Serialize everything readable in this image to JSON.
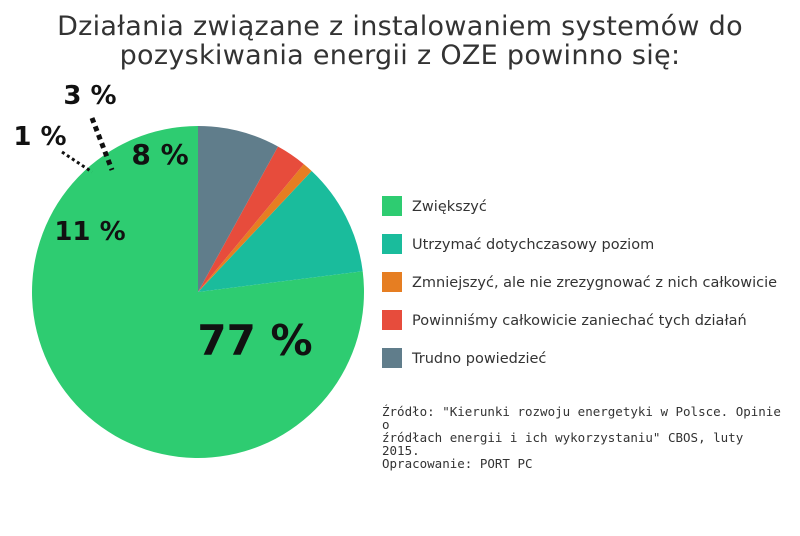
{
  "chart_data": {
    "type": "pie",
    "title": "Działania związane z instalowaniem  systemów do\npozyskiwania energii z OZE  powinno się:",
    "slices": [
      {
        "label": "Zwiększyć",
        "value": 77,
        "display": "77 %",
        "color": "#2ecc71"
      },
      {
        "label": "Utrzymać dotychczasowy poziom",
        "value": 11,
        "display": "11 %",
        "color": "#1abc9c"
      },
      {
        "label": "Zmniejszyć, ale nie zrezygnować z nich całkowicie",
        "value": 1,
        "display": "1 %",
        "color": "#e67e22"
      },
      {
        "label": "Powinniśmy całkowicie zaniechać tych działań",
        "value": 3,
        "display": "3 %",
        "color": "#e74c3c"
      },
      {
        "label": "Trudno powiedzieć",
        "value": 8,
        "display": "8 %",
        "color": "#607d8b"
      }
    ],
    "legend_position": "right"
  },
  "source_note": "Źródło: \"Kierunki rozwoju energetyki w Polsce. Opinie o\nźródłach energii i ich wykorzystaniu\" CBOS, luty 2015.\nOpracowanie: PORT PC"
}
